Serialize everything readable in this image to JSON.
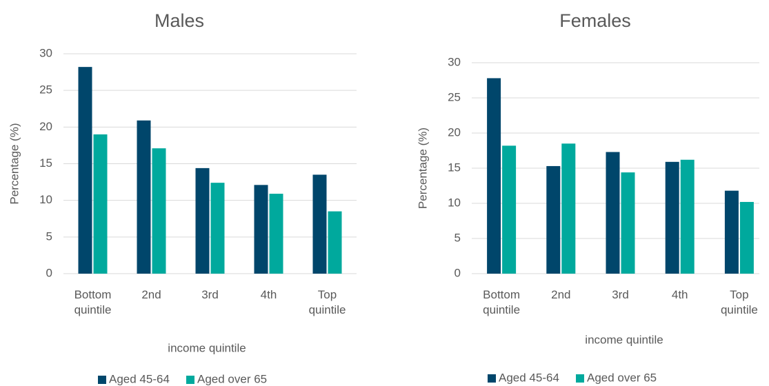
{
  "chart_data": [
    {
      "type": "bar",
      "title": "Males",
      "x_label": "income quintile",
      "y_label": "Percentage (%)",
      "categories": [
        "Bottom quintile",
        "2nd",
        "3rd",
        "4th",
        "Top quintile"
      ],
      "series": [
        {
          "name": "Aged 45-64",
          "color": "#00466b",
          "values": [
            28.2,
            20.9,
            14.4,
            12.1,
            13.5
          ]
        },
        {
          "name": "Aged over 65",
          "color": "#00a99d",
          "values": [
            19.0,
            17.1,
            12.4,
            10.9,
            8.5
          ]
        }
      ],
      "ylim": [
        0,
        30
      ],
      "yticks": [
        0,
        5,
        10,
        15,
        20,
        25,
        30
      ],
      "grid": true,
      "legend": "bottom"
    },
    {
      "type": "bar",
      "title": "Females",
      "x_label": "income quintile",
      "y_label": "Percentage (%)",
      "categories": [
        "Bottom quintile",
        "2nd",
        "3rd",
        "4th",
        "Top quintile"
      ],
      "series": [
        {
          "name": "Aged 45-64",
          "color": "#00466b",
          "values": [
            27.8,
            15.3,
            17.3,
            15.9,
            11.8
          ]
        },
        {
          "name": "Aged over 65",
          "color": "#00a99d",
          "values": [
            18.2,
            18.5,
            14.4,
            16.2,
            10.2
          ]
        }
      ],
      "ylim": [
        0,
        30
      ],
      "yticks": [
        0,
        5,
        10,
        15,
        20,
        25,
        30
      ],
      "grid": true,
      "legend": "bottom"
    }
  ]
}
